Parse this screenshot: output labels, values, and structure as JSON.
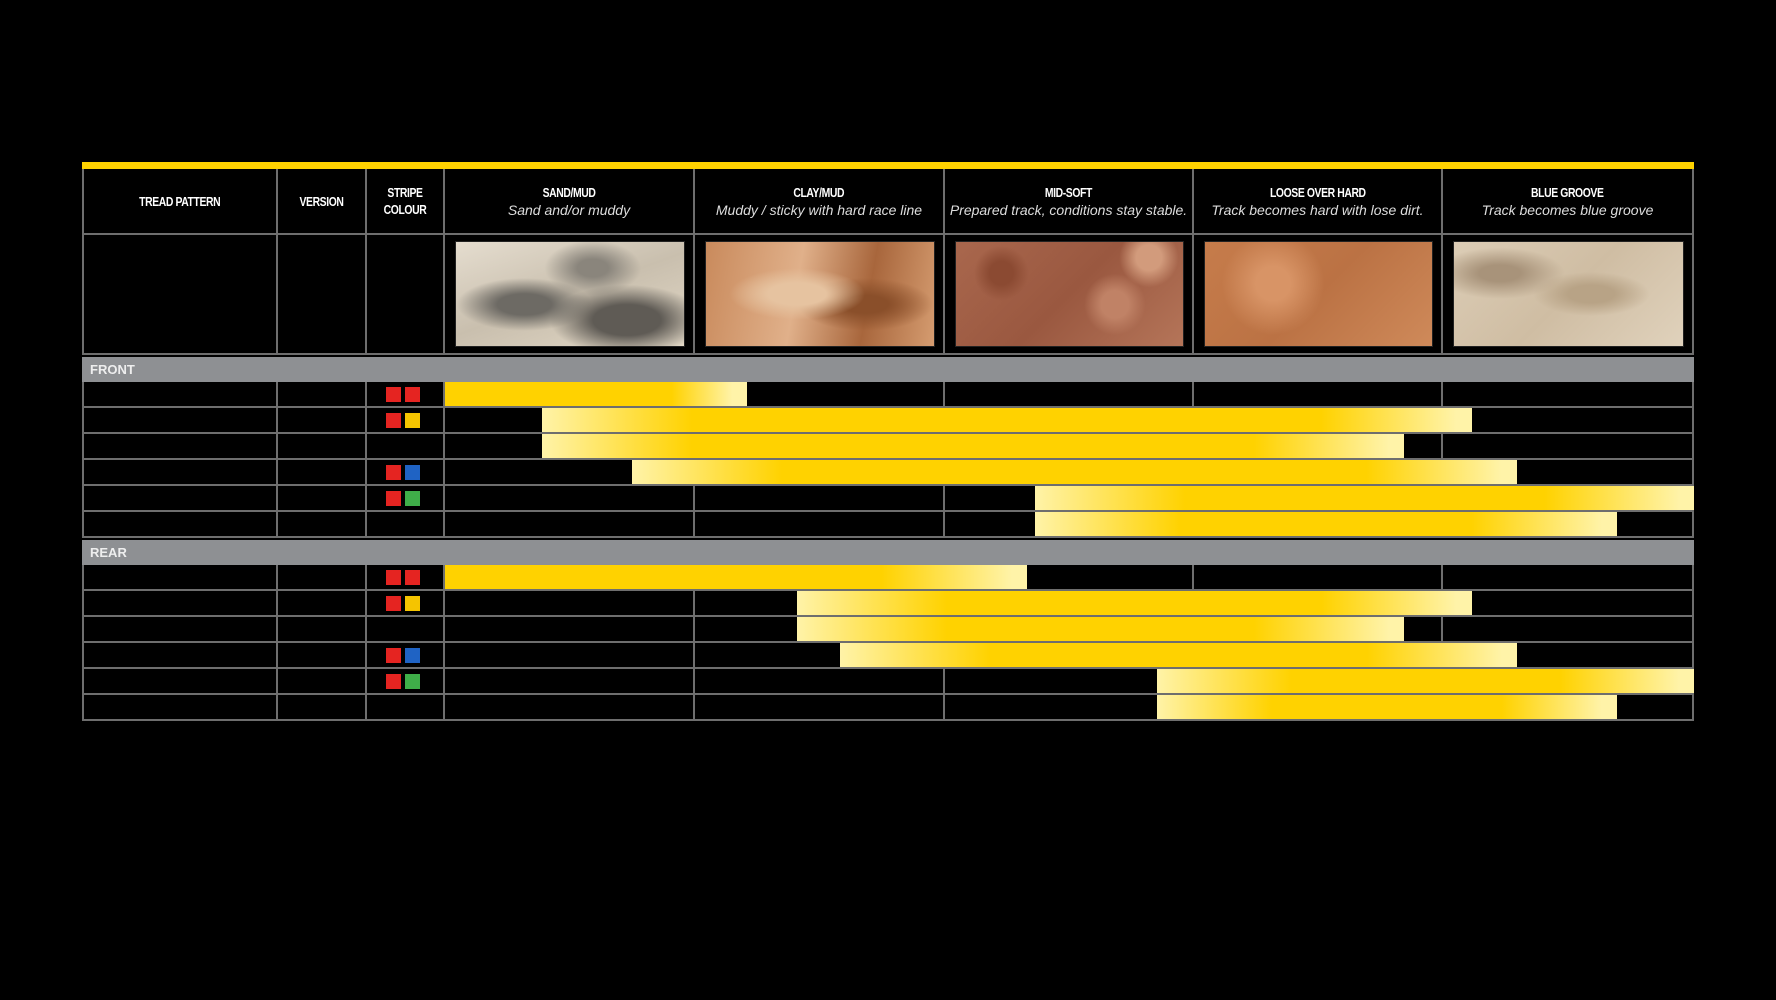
{
  "columns": [
    {
      "title": "TREAD PATTERN"
    },
    {
      "title": "VERSION"
    },
    {
      "title": "STRIPE COLOUR"
    },
    {
      "title": "SAND/MUD",
      "subtitle": "Sand and/or muddy",
      "texture": "sand"
    },
    {
      "title": "CLAY/MUD",
      "subtitle": "Muddy / sticky with hard race line",
      "texture": "clay"
    },
    {
      "title": "MID-SOFT",
      "subtitle": "Prepared track, conditions stay stable.",
      "texture": "midsoft"
    },
    {
      "title": "LOOSE OVER HARD",
      "subtitle": "Track becomes hard with lose dirt.",
      "texture": "loose"
    },
    {
      "title": "BLUE GROOVE",
      "subtitle": "Track becomes blue groove",
      "texture": "blue"
    }
  ],
  "colors": {
    "accent": "#ffd200",
    "bar_solid": "#ffd200",
    "bar_pale": "#fff3a8",
    "band": "#8e9093",
    "grid": "#6e6e6e",
    "red": "#e52421",
    "yellow": "#f5c400",
    "blue": "#1f63c4",
    "green": "#3fae49"
  },
  "chart_data": {
    "type": "bar",
    "orientation": "horizontal-range",
    "categories": [
      "SAND/MUD",
      "CLAY/MUD",
      "MID-SOFT",
      "LOOSE OVER HARD",
      "BLUE GROOVE"
    ],
    "groups": [
      {
        "label": "FRONT",
        "rows": [
          {
            "stripe": [
              "red",
              "red"
            ],
            "start": 0,
            "end": 1.21
          },
          {
            "stripe": [
              "red",
              "yellow"
            ],
            "start": 0.39,
            "end": 4.11
          },
          {
            "stripe": [],
            "start": 0.39,
            "end": 3.84
          },
          {
            "stripe": [
              "red",
              "blue"
            ],
            "start": 0.75,
            "end": 4.29
          },
          {
            "stripe": [
              "red",
              "green"
            ],
            "start": 2.36,
            "end": 5
          },
          {
            "stripe": [],
            "start": 2.36,
            "end": 4.69
          }
        ]
      },
      {
        "label": "REAR",
        "rows": [
          {
            "stripe": [
              "red",
              "red"
            ],
            "start": 0,
            "end": 2.33
          },
          {
            "stripe": [
              "red",
              "yellow"
            ],
            "start": 1.41,
            "end": 4.11
          },
          {
            "stripe": [],
            "start": 1.41,
            "end": 3.84
          },
          {
            "stripe": [
              "red",
              "blue"
            ],
            "start": 1.58,
            "end": 4.29
          },
          {
            "stripe": [
              "red",
              "green"
            ],
            "start": 2.85,
            "end": 5
          },
          {
            "stripe": [],
            "start": 2.85,
            "end": 4.69
          }
        ]
      }
    ]
  }
}
